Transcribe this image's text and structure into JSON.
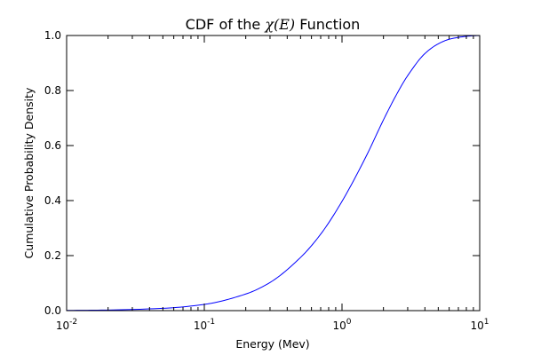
{
  "chart_data": {
    "type": "line",
    "title_prefix": "CDF of the ",
    "title_math": "χ(E)",
    "title_suffix": " Function",
    "xlabel": "Energy (Mev)",
    "ylabel": "Cumulative Probability Density",
    "xscale": "log",
    "xlim": [
      0.01,
      10
    ],
    "ylim": [
      0.0,
      1.0
    ],
    "grid": false,
    "x_ticks": [
      {
        "value": 0.01,
        "base": "10",
        "exp": "-2"
      },
      {
        "value": 0.1,
        "base": "10",
        "exp": "-1"
      },
      {
        "value": 1,
        "base": "10",
        "exp": "0"
      },
      {
        "value": 10,
        "base": "10",
        "exp": "1"
      }
    ],
    "y_ticks": [
      "0.0",
      "0.2",
      "0.4",
      "0.6",
      "0.8",
      "1.0"
    ],
    "series": [
      {
        "color": "#0000ff",
        "x": [
          0.01,
          0.02,
          0.05,
          0.1,
          0.2,
          0.3,
          0.5,
          0.7,
          1.0,
          1.5,
          2.0,
          2.5,
          3.0,
          4.0,
          5.0,
          6.0,
          7.0,
          8.0,
          9.0,
          10.0
        ],
        "y": [
          0.0007,
          0.0022,
          0.0084,
          0.0227,
          0.0604,
          0.1023,
          0.1934,
          0.2779,
          0.3973,
          0.5617,
          0.6933,
          0.7873,
          0.8542,
          0.9344,
          0.9697,
          0.9863,
          0.9931,
          0.997,
          0.999,
          0.9998
        ]
      }
    ]
  }
}
